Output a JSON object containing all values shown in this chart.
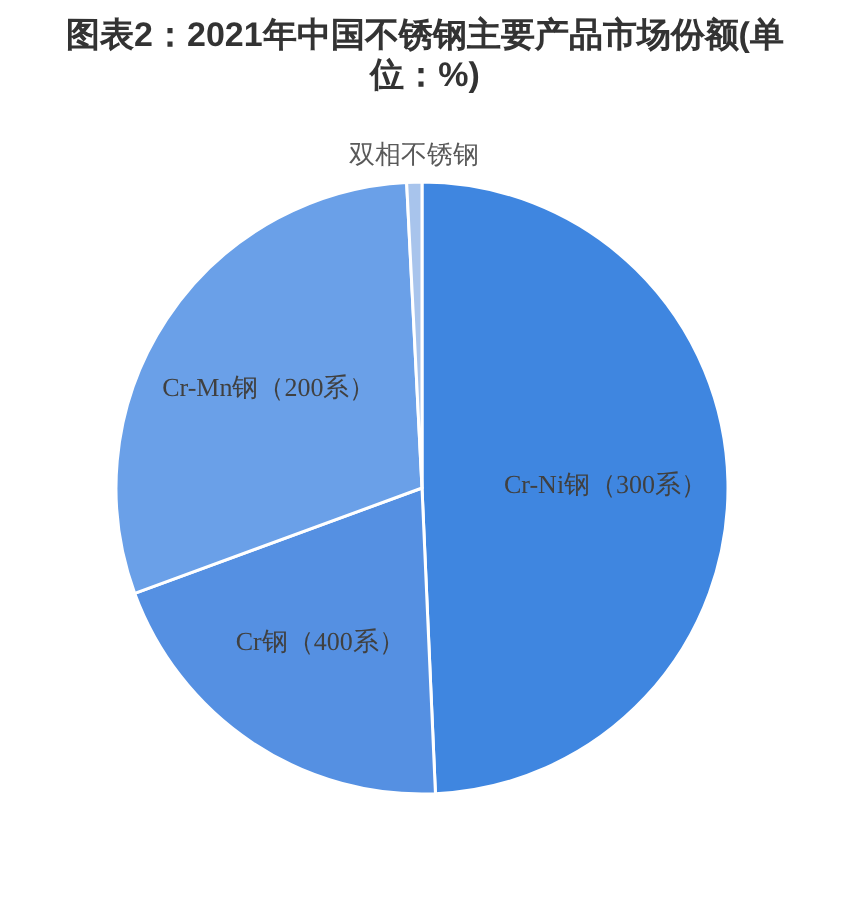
{
  "chart_data": {
    "type": "pie",
    "title": "图表2：2021年中国不锈钢主要产品市场份额(单位：%)",
    "categories": [
      "Cr-Ni钢（300系）",
      "Cr钢（400系）",
      "Cr-Mn钢（200系）",
      "双相不锈钢"
    ],
    "values": [
      49.3,
      20.1,
      29.8,
      0.8
    ],
    "colors": [
      "#3f86e0",
      "#5590e2",
      "#6aa0e8",
      "#a8c4ec"
    ]
  }
}
